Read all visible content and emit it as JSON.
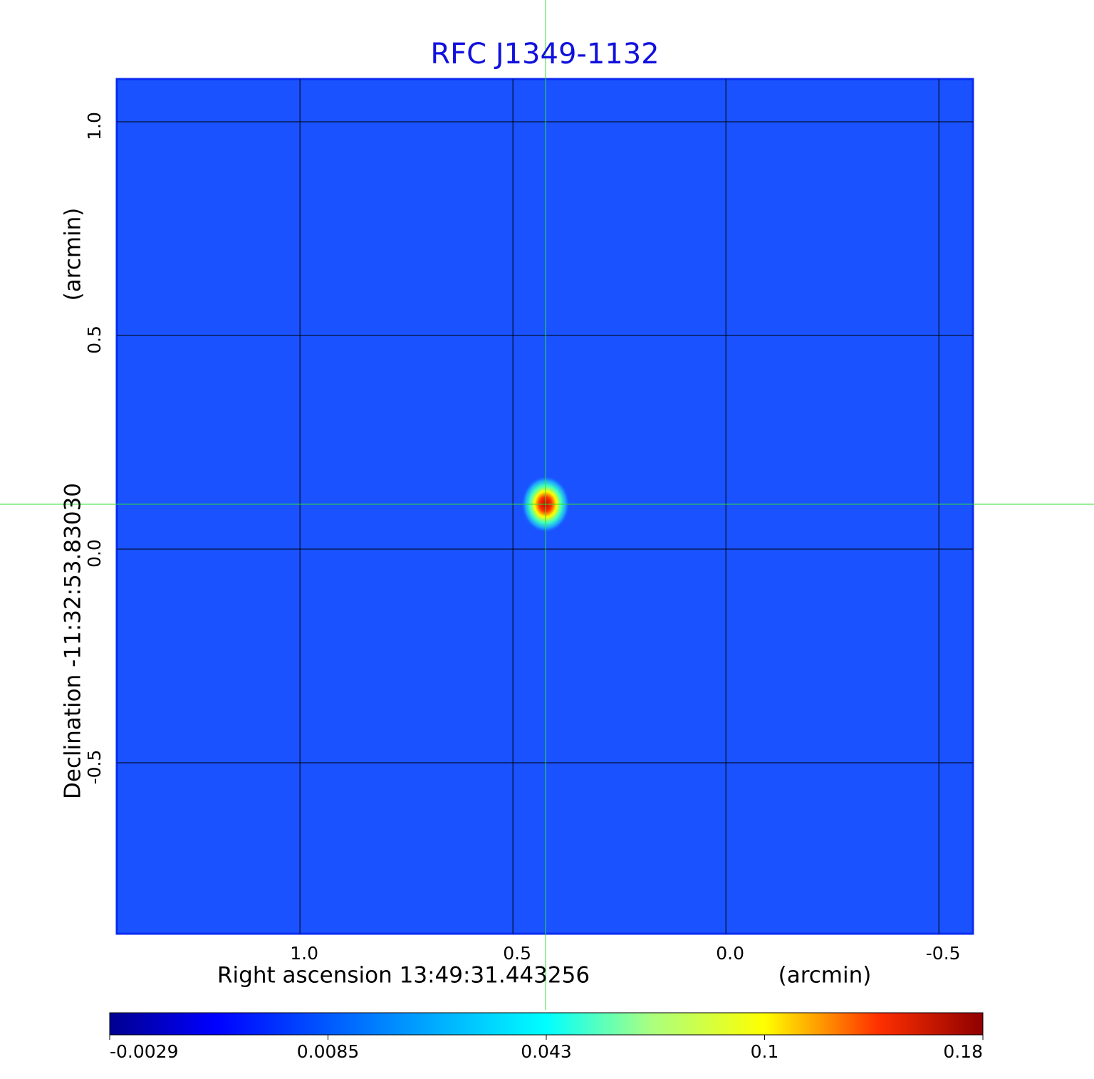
{
  "chart_data": {
    "type": "image",
    "title": "RFC J1349-1132",
    "x_label": "Right ascension  13:49:31.443256",
    "x_unit": "(arcmin)",
    "y_label": "Declination  -11:32:53.83030",
    "y_unit": "(arcmin)",
    "xlim": [
      1.43,
      -0.58
    ],
    "ylim": [
      -0.9,
      1.1
    ],
    "xticks": [
      {
        "value": 1,
        "label": "1.0"
      },
      0.5,
      {
        "value": 0,
        "label": "0.0"
      },
      -0.5
    ],
    "yticks": [
      {
        "value": 1,
        "label": "1.0"
      },
      0.5,
      {
        "value": 0,
        "label": "0.0"
      },
      -0.5
    ],
    "grid": true,
    "colormap": "jet",
    "colorbar_ticks": [
      -0.0029,
      0.0085,
      0.043,
      0.1,
      0.18
    ]
  }
}
